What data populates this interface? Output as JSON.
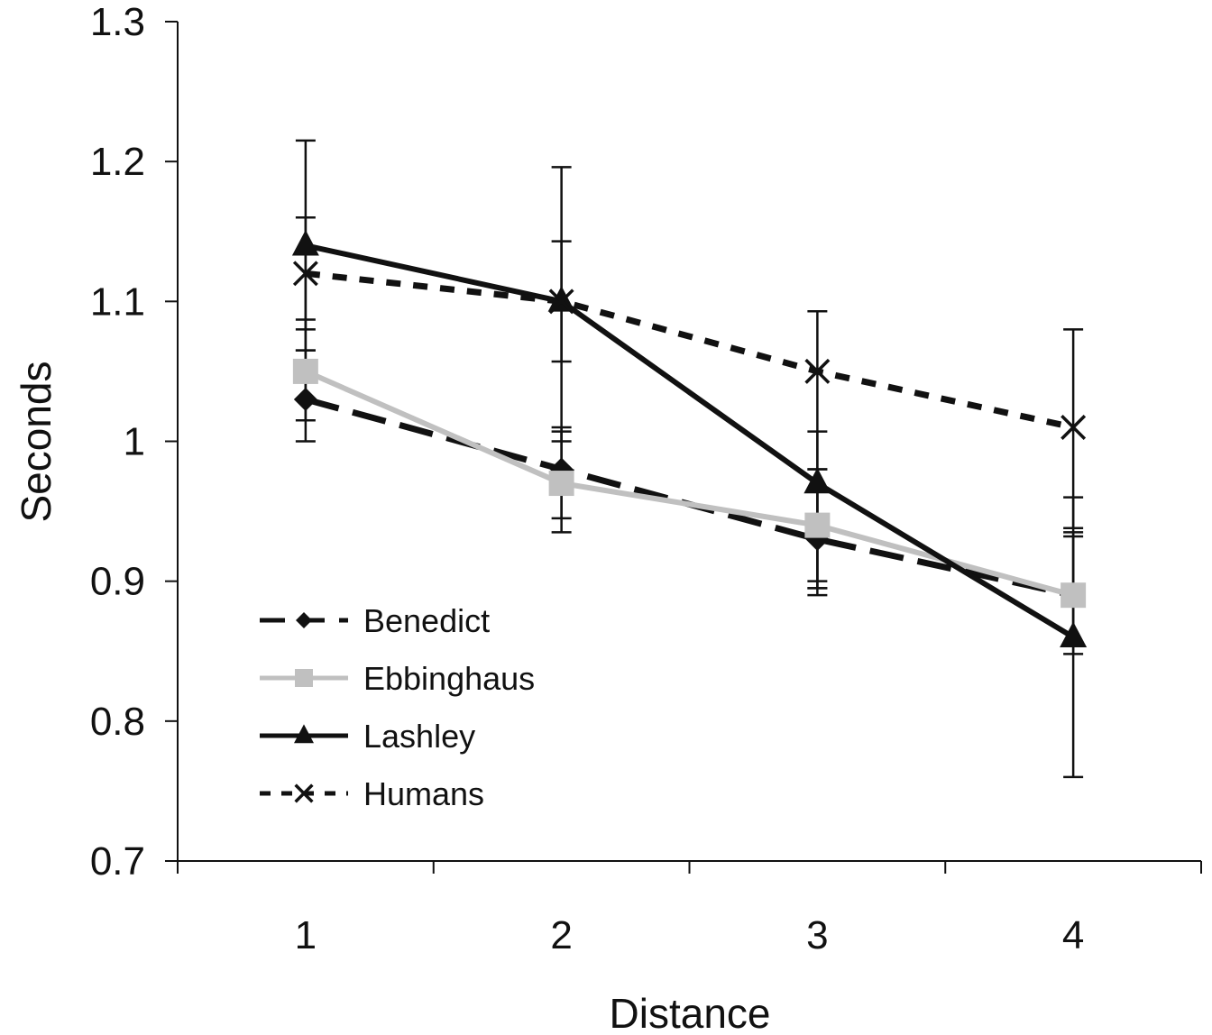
{
  "chart_data": {
    "type": "line",
    "title": "",
    "xlabel": "Distance",
    "ylabel": "Seconds",
    "categories": [
      "1",
      "2",
      "3",
      "4"
    ],
    "ylim": [
      0.7,
      1.3
    ],
    "yticks": [
      "0.7",
      "0.8",
      "0.9",
      "1",
      "1.1",
      "1.2",
      "1.3"
    ],
    "grid": false,
    "legend_position": "bottom-left",
    "series": [
      {
        "name": "Benedict",
        "values": [
          1.03,
          0.98,
          0.93,
          0.89
        ],
        "error_low": [
          1.0,
          0.945,
          0.89,
          0.855
        ],
        "error_high": [
          1.065,
          1.01,
          0.98,
          0.935
        ],
        "color": "#111111",
        "line_style": "long-dash",
        "marker": "diamond"
      },
      {
        "name": "Ebbinghaus",
        "values": [
          1.05,
          0.97,
          0.94,
          0.89
        ],
        "error_low": [
          1.015,
          0.935,
          0.895,
          0.848
        ],
        "error_high": [
          1.087,
          1.007,
          0.98,
          0.932
        ],
        "color": "#c0c0c0",
        "line_style": "solid",
        "marker": "square"
      },
      {
        "name": "Lashley",
        "values": [
          1.14,
          1.1,
          0.97,
          0.86
        ],
        "error_low": [
          1.065,
          1.057,
          0.9,
          0.76
        ],
        "error_high": [
          1.215,
          1.143,
          1.007,
          0.96
        ],
        "color": "#111111",
        "line_style": "solid",
        "marker": "triangle"
      },
      {
        "name": "Humans",
        "values": [
          1.12,
          1.1,
          1.05,
          1.01
        ],
        "error_low": [
          1.08,
          1.0,
          0.895,
          0.938
        ],
        "error_high": [
          1.16,
          1.196,
          1.093,
          1.08
        ],
        "color": "#111111",
        "line_style": "dotted",
        "marker": "x"
      }
    ]
  }
}
